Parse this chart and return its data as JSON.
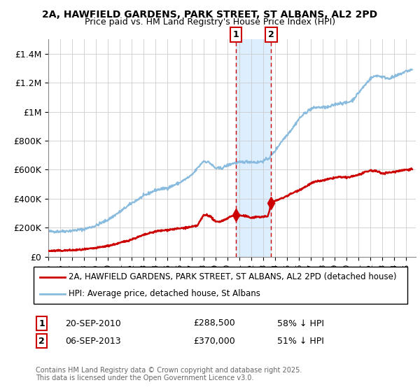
{
  "title1": "2A, HAWFIELD GARDENS, PARK STREET, ST ALBANS, AL2 2PD",
  "title2": "Price paid vs. HM Land Registry's House Price Index (HPI)",
  "ylim": [
    0,
    1500000
  ],
  "yticks": [
    0,
    200000,
    400000,
    600000,
    800000,
    1000000,
    1200000,
    1400000
  ],
  "ytick_labels": [
    "£0",
    "£200K",
    "£400K",
    "£600K",
    "£800K",
    "£1M",
    "£1.2M",
    "£1.4M"
  ],
  "xlim_start": 1995,
  "xlim_end": 2025.8,
  "transaction1": {
    "date_num": 2010.72,
    "price": 288500,
    "label": "1",
    "text": "20-SEP-2010",
    "price_str": "£288,500",
    "hpi_str": "58% ↓ HPI"
  },
  "transaction2": {
    "date_num": 2013.68,
    "price": 370000,
    "label": "2",
    "text": "06-SEP-2013",
    "price_str": "£370,000",
    "hpi_str": "51% ↓ HPI"
  },
  "legend1": "2A, HAWFIELD GARDENS, PARK STREET, ST ALBANS, AL2 2PD (detached house)",
  "legend2": "HPI: Average price, detached house, St Albans",
  "footnote": "Contains HM Land Registry data © Crown copyright and database right 2025.\nThis data is licensed under the Open Government Licence v3.0.",
  "red_color": "#cc0000",
  "blue_color": "#88bbdd",
  "shade_color": "#ddeeff",
  "grid_color": "#cccccc"
}
